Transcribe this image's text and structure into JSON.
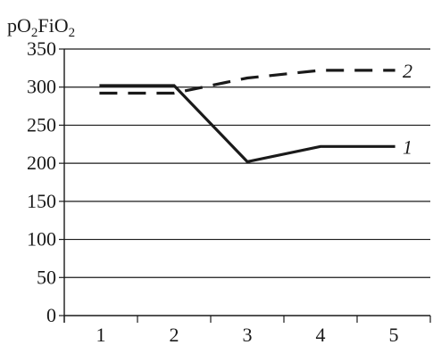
{
  "chart_data": {
    "type": "line",
    "ylabel_parts": [
      {
        "text": "pO",
        "sub": false
      },
      {
        "text": "2",
        "sub": true
      },
      {
        "text": "FiO",
        "sub": false
      },
      {
        "text": "2",
        "sub": true
      }
    ],
    "xlabel": "",
    "x": [
      1,
      2,
      3,
      4,
      5
    ],
    "x_ticks": [
      "1",
      "2",
      "3",
      "4",
      "5"
    ],
    "y_ticks": [
      "0",
      "50",
      "100",
      "150",
      "200",
      "250",
      "300",
      "350"
    ],
    "ylim": [
      0,
      350
    ],
    "xlim": [
      0.5,
      5.5
    ],
    "grid": "horizontal",
    "series": [
      {
        "name": "1",
        "values": [
          302,
          302,
          202,
          222,
          222
        ],
        "style": "solid",
        "color": "#1a1a1a"
      },
      {
        "name": "2",
        "values": [
          292,
          292,
          312,
          322,
          322
        ],
        "style": "dashed",
        "color": "#1a1a1a"
      }
    ]
  }
}
